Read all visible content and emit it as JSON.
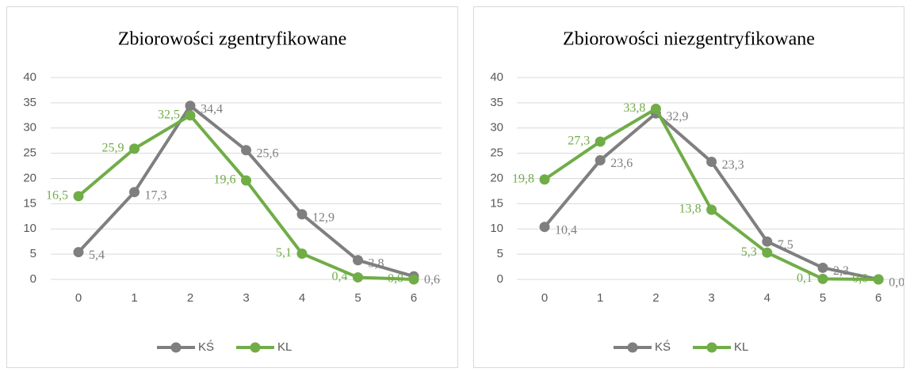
{
  "chart_data": [
    {
      "type": "line",
      "title": "Zbiorowości zgentryfikowane",
      "categories": [
        "0",
        "1",
        "2",
        "3",
        "4",
        "5",
        "6"
      ],
      "series": [
        {
          "name": "KŚ",
          "color": "#7f7f7f",
          "values": [
            5.4,
            17.3,
            34.4,
            25.6,
            12.9,
            3.8,
            0.6
          ],
          "value_labels": [
            "5,4",
            "17,3",
            "34,4",
            "25,6",
            "12,9",
            "3,8",
            "0,6"
          ]
        },
        {
          "name": "KL",
          "color": "#70ad47",
          "values": [
            16.5,
            25.9,
            32.5,
            19.6,
            5.1,
            0.4,
            0.0
          ],
          "value_labels": [
            "16,5",
            "25,9",
            "32,5",
            "19,6",
            "5,1",
            "0,4",
            "0,0"
          ]
        }
      ],
      "ylim": [
        0,
        40
      ],
      "yticks": [
        0,
        5,
        10,
        15,
        20,
        25,
        30,
        35,
        40
      ],
      "grid": true,
      "legend": "bottom"
    },
    {
      "type": "line",
      "title": "Zbiorowości niezgentryfikowane",
      "categories": [
        "0",
        "1",
        "2",
        "3",
        "4",
        "5",
        "6"
      ],
      "series": [
        {
          "name": "KŚ",
          "color": "#7f7f7f",
          "values": [
            10.4,
            23.6,
            32.9,
            23.3,
            7.5,
            2.3,
            0.0
          ],
          "value_labels": [
            "10,4",
            "23,6",
            "32,9",
            "23,3",
            "7,5",
            "2,3",
            "0,0"
          ]
        },
        {
          "name": "KL",
          "color": "#70ad47",
          "values": [
            19.8,
            27.3,
            33.8,
            13.8,
            5.3,
            0.1,
            0.0
          ],
          "value_labels": [
            "19,8",
            "27,3",
            "33,8",
            "13,8",
            "5,3",
            "0,1",
            "0,0"
          ]
        }
      ],
      "ylim": [
        0,
        40
      ],
      "yticks": [
        0,
        5,
        10,
        15,
        20,
        25,
        30,
        35,
        40
      ],
      "grid": true,
      "legend": "bottom"
    }
  ]
}
